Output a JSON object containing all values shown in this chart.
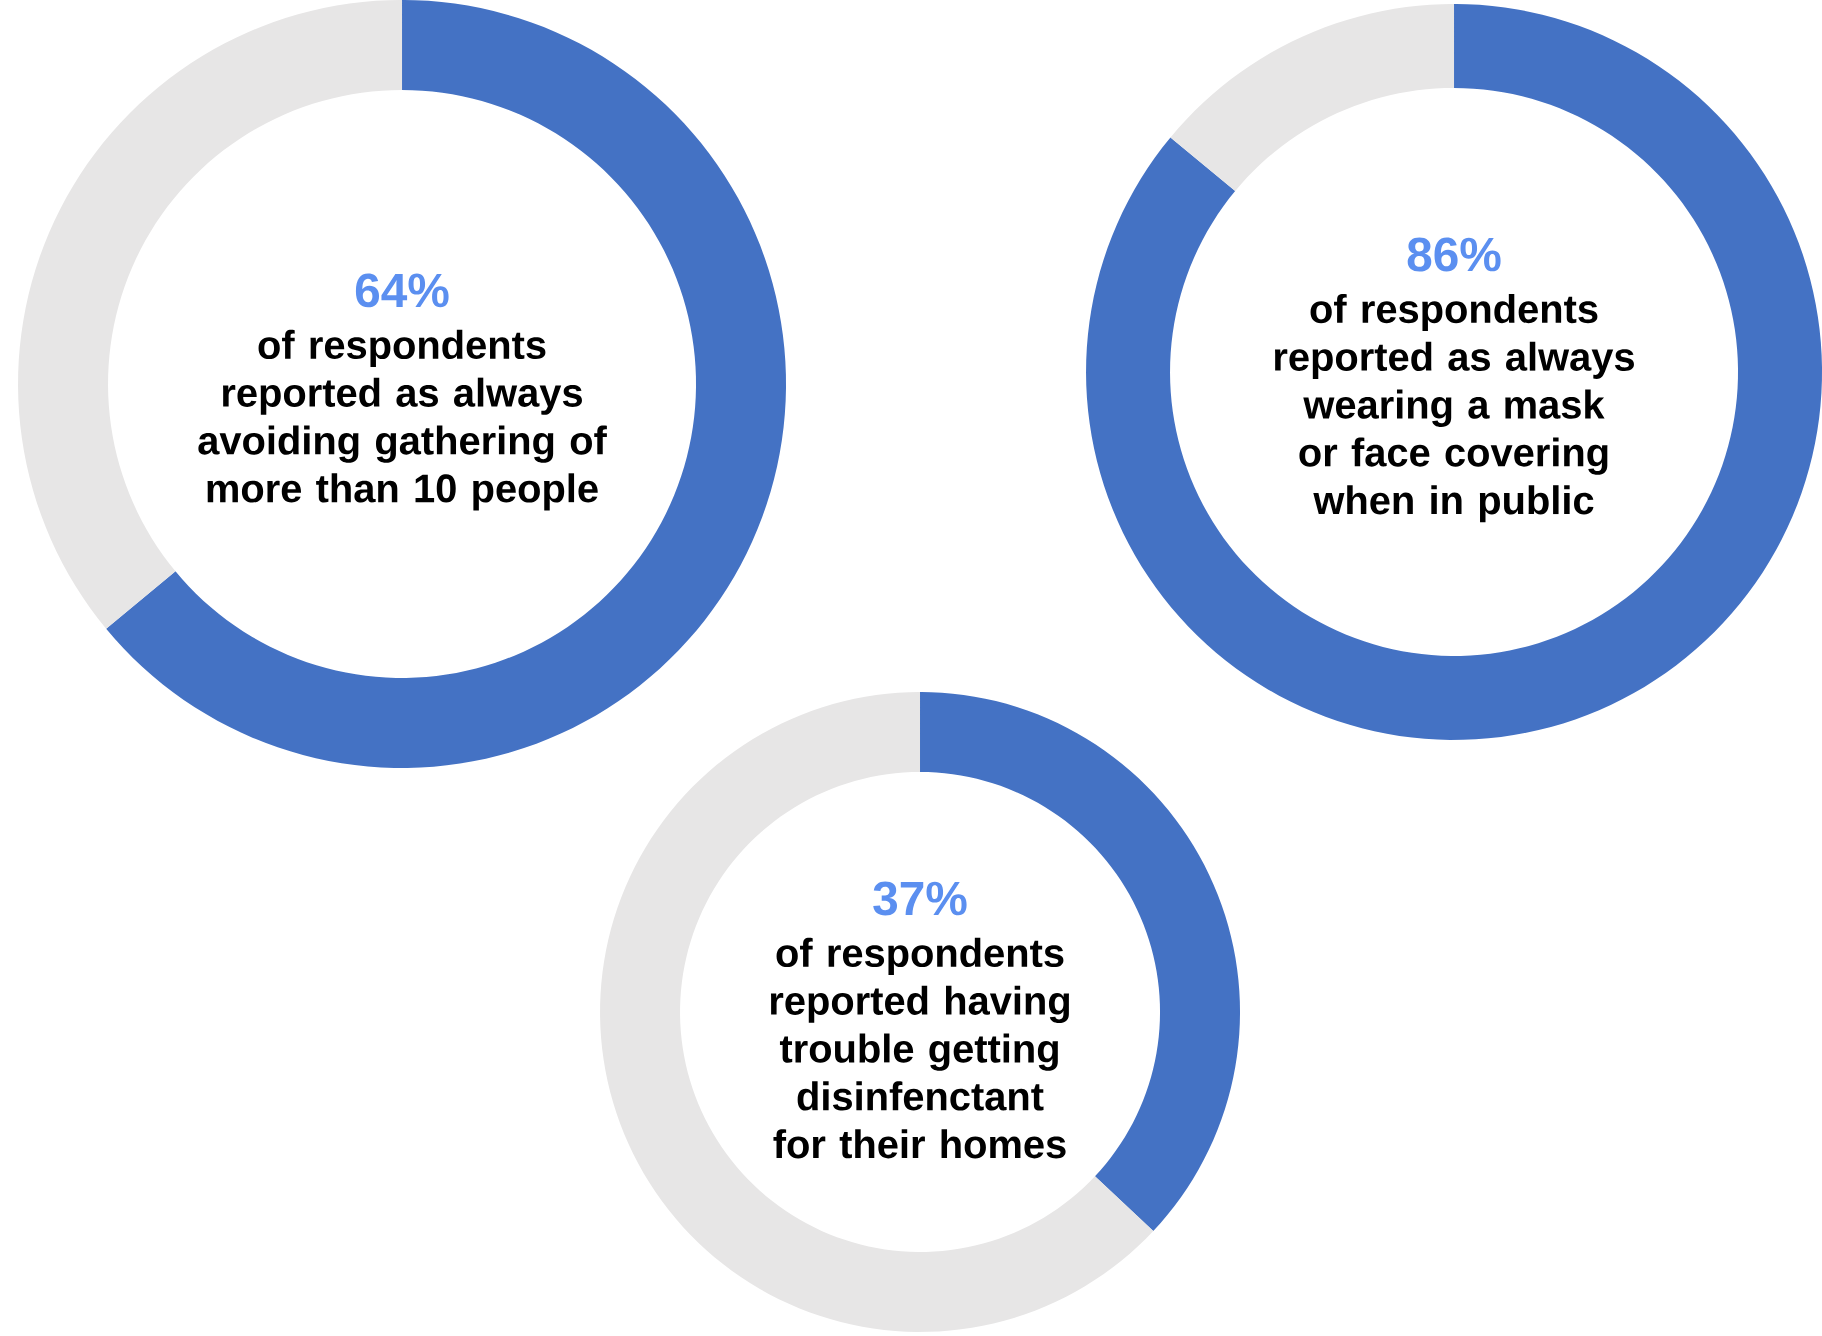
{
  "chart_data": [
    {
      "type": "donut",
      "categories": [
        null,
        null
      ],
      "values": [
        64,
        36
      ],
      "colors": [
        "#4472c4",
        "#e7e6e6"
      ],
      "value_labels": [
        "64%",
        null
      ],
      "annotations": [
        "of respondents reported as always avoiding gathering of more than 10 people"
      ]
    },
    {
      "type": "donut",
      "categories": [
        null,
        null
      ],
      "values": [
        86,
        14
      ],
      "colors": [
        "#4472c4",
        "#e7e6e6"
      ],
      "value_labels": [
        "86%",
        null
      ],
      "annotations": [
        "of respondents reported as always wearing a mask or face covering when in public"
      ]
    },
    {
      "type": "donut",
      "categories": [
        null,
        null
      ],
      "values": [
        37,
        63
      ],
      "colors": [
        "#4472c4",
        "#e7e6e6"
      ],
      "value_labels": [
        "37%",
        null
      ],
      "annotations": [
        "of respondents reported having trouble getting disinfenctant for their homes"
      ]
    }
  ]
}
